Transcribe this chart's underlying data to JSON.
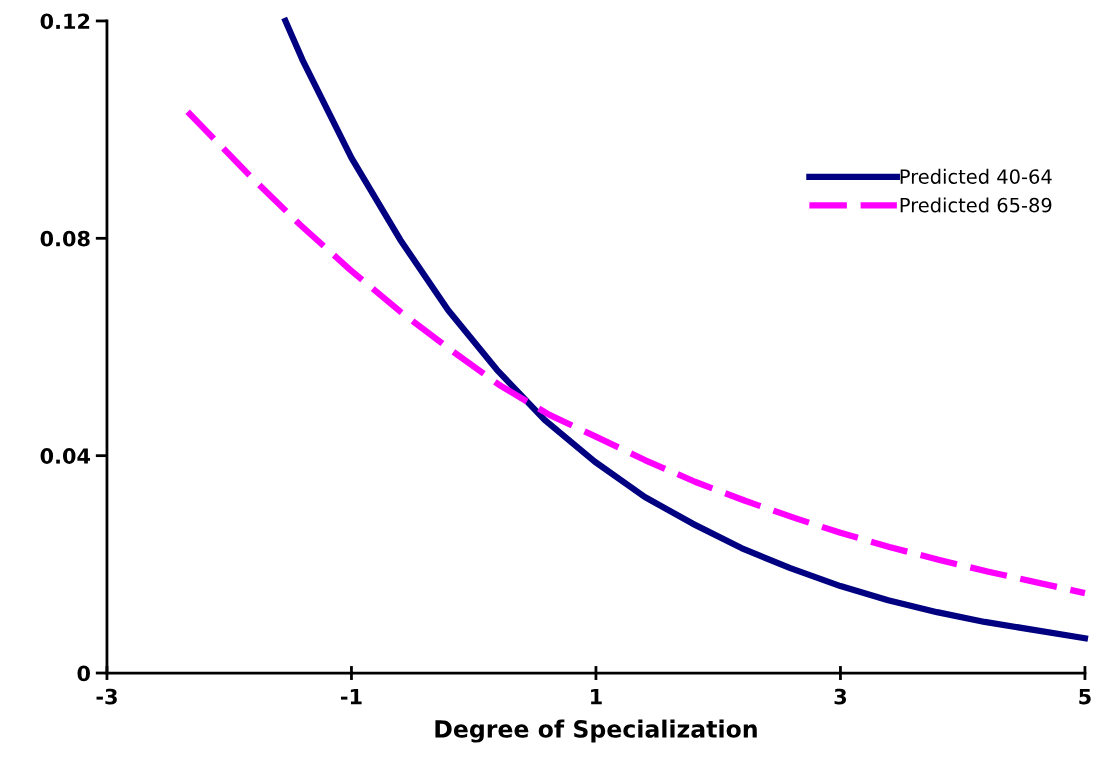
{
  "chart_data": {
    "type": "line",
    "xlabel": "Degree of Specialization",
    "xlim": [
      -3,
      5
    ],
    "xticks": [
      -3,
      -1,
      1,
      3,
      5
    ],
    "ylim": [
      0,
      0.12
    ],
    "yticks": [
      0,
      0.04,
      0.08,
      0.12
    ],
    "grid": false,
    "legend": "top right",
    "marker": "none",
    "series": [
      {
        "name": "Predicted 40-64",
        "color": "#000080",
        "line_style": "solid",
        "x": [
          -1.54,
          -1.4,
          -1.0,
          -0.6,
          -0.21,
          0.19,
          0.58,
          0.99,
          1.4,
          1.79,
          2.19,
          2.59,
          3.0,
          3.39,
          3.79,
          4.18,
          5.0
        ],
        "values": [
          0.12,
          0.1128,
          0.0948,
          0.0797,
          0.0668,
          0.0558,
          0.0466,
          0.0389,
          0.0324,
          0.0275,
          0.023,
          0.0193,
          0.016,
          0.0134,
          0.0112,
          0.0094,
          0.0064
        ]
      },
      {
        "name": "Predicted 65-89",
        "color": "#ff00ff",
        "line_style": "dashed",
        "x": [
          -2.34,
          -1.83,
          -1.42,
          -1.01,
          -0.6,
          -0.19,
          0.21,
          0.62,
          0.99,
          1.4,
          1.81,
          2.22,
          2.63,
          3.0,
          3.4,
          3.81,
          4.22,
          5.0
        ],
        "values": [
          0.1033,
          0.0915,
          0.0825,
          0.0742,
          0.0665,
          0.0595,
          0.053,
          0.0475,
          0.0436,
          0.0392,
          0.0352,
          0.0317,
          0.0285,
          0.0258,
          0.0232,
          0.0208,
          0.0186,
          0.0147
        ]
      }
    ]
  }
}
